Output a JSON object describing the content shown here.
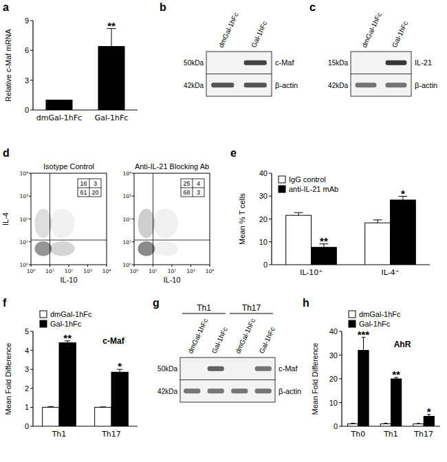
{
  "chart_data": [
    {
      "type": "bar",
      "panel_label": "a",
      "ylabel": "Relative c-Maf mRNA",
      "categories": [
        "dmGal-1hFc",
        "Gal-1hFc"
      ],
      "values": [
        1,
        6.4
      ],
      "errors": [
        0,
        1.8
      ],
      "significance": [
        null,
        "**"
      ],
      "color": "#000000",
      "ylim": [
        0,
        9
      ],
      "yticks": [
        0,
        3,
        6,
        9
      ]
    },
    {
      "type": "blot",
      "panel_label": "b",
      "lanes": [
        "dmGal-1hFc",
        "Gal-1hFc"
      ],
      "rows": [
        {
          "protein": "c-Maf",
          "size": "50kDa",
          "bands": [
            0,
            0.85
          ]
        },
        {
          "protein": "β-actin",
          "size": "42kDa",
          "bands": [
            0.75,
            0.75
          ]
        }
      ]
    },
    {
      "type": "blot",
      "panel_label": "c",
      "lanes": [
        "dmGal-1hFc",
        "Gal-1hFc"
      ],
      "rows": [
        {
          "protein": "IL-21",
          "size": "15kDa",
          "bands": [
            0,
            0.9
          ]
        },
        {
          "protein": "β-actin",
          "size": "42kDa",
          "bands": [
            0.6,
            0.6
          ]
        }
      ]
    },
    {
      "type": "flow",
      "panel_label": "d",
      "xlabel": "IL-10",
      "ylabel": "IL-4",
      "log": true,
      "xlim": [
        1,
        10000
      ],
      "ylim": [
        1,
        10000
      ],
      "xticks": [
        {
          "value": 1,
          "label": "10⁰"
        },
        {
          "value": 10,
          "label": "10¹"
        },
        {
          "value": 100,
          "label": "10²"
        },
        {
          "value": 1000,
          "label": "10³"
        },
        {
          "value": 10000,
          "label": "10⁴"
        }
      ],
      "yticks": [
        {
          "value": 1,
          "label": "10⁰"
        },
        {
          "value": 10,
          "label": "10¹"
        },
        {
          "value": 100,
          "label": "10²"
        },
        {
          "value": 1000,
          "label": "10³"
        },
        {
          "value": 10000,
          "label": "10⁴"
        }
      ],
      "x_gate": 10,
      "y_gate": 12,
      "plots": [
        {
          "title": "Isotype Control",
          "quadrants": [
            [
              16,
              3
            ],
            [
              61,
              20
            ]
          ]
        },
        {
          "title": "Anti-IL-21 Blocking Ab",
          "quadrants": [
            [
              25,
              4
            ],
            [
              68,
              3
            ]
          ]
        }
      ]
    },
    {
      "type": "bar",
      "panel_label": "e",
      "ylabel": "Mean % T cells",
      "categories": [
        "IL-10⁺",
        "IL-4⁺"
      ],
      "series": [
        {
          "name": "IgG control",
          "color": "#ffffff",
          "values": [
            21.6,
            18.3
          ],
          "errors": [
            1.2,
            1.3
          ]
        },
        {
          "name": "anti-IL-21 mAb",
          "color": "#000000",
          "values": [
            7.6,
            28.3
          ],
          "errors": [
            1.5,
            1.6
          ],
          "significance": [
            "**",
            "*"
          ]
        }
      ],
      "ylim": [
        0,
        40
      ],
      "yticks": [
        0,
        10,
        20,
        30,
        40
      ],
      "legend": "upper left"
    },
    {
      "type": "bar",
      "panel_label": "f",
      "ylabel": "Mean Fold Difference",
      "annotation": "c-Maf",
      "categories": [
        "Th1",
        "Th17"
      ],
      "series": [
        {
          "name": "dmGal-1hFc",
          "color": "#ffffff",
          "values": [
            1,
            1
          ],
          "errors": [
            0.04,
            0.02
          ]
        },
        {
          "name": "Gal-1hFc",
          "color": "#000000",
          "values": [
            4.4,
            2.85
          ],
          "errors": [
            0.1,
            0.15
          ],
          "significance": [
            "**",
            "*"
          ]
        }
      ],
      "ylim": [
        0,
        5
      ],
      "yticks": [
        0,
        1,
        2,
        3,
        4,
        5
      ],
      "legend": "top left"
    },
    {
      "type": "blot",
      "panel_label": "g",
      "groups": [
        "Th1",
        "Th17"
      ],
      "lanes": [
        "dmGal-1hFc",
        "Gal-1hFc",
        "dmGal-1hFc",
        "Gal-1hFc"
      ],
      "rows": [
        {
          "protein": "c-Maf",
          "size": "50kDa",
          "bands": [
            0,
            0.7,
            0,
            0.6
          ]
        },
        {
          "protein": "β-actin",
          "size": "42kDa",
          "bands": [
            0.6,
            0.6,
            0.6,
            0.6
          ]
        }
      ]
    },
    {
      "type": "bar",
      "panel_label": "h",
      "ylabel": "Mean Fold Difference",
      "annotation": "AhR",
      "categories": [
        "Th0",
        "Th1",
        "Th17"
      ],
      "series": [
        {
          "name": "dmGal-1hFc",
          "color": "#ffffff",
          "values": [
            1,
            1,
            1
          ],
          "errors": [
            0.3,
            0.3,
            0.2
          ]
        },
        {
          "name": "Gal-1hFc",
          "color": "#000000",
          "values": [
            32,
            20,
            4.2
          ],
          "errors": [
            5.5,
            0.6,
            0.8
          ],
          "significance": [
            "***",
            "**",
            "*"
          ]
        }
      ],
      "ylim": [
        0,
        40
      ],
      "yticks": [
        0,
        10,
        20,
        30,
        40
      ],
      "legend": "top left"
    }
  ]
}
